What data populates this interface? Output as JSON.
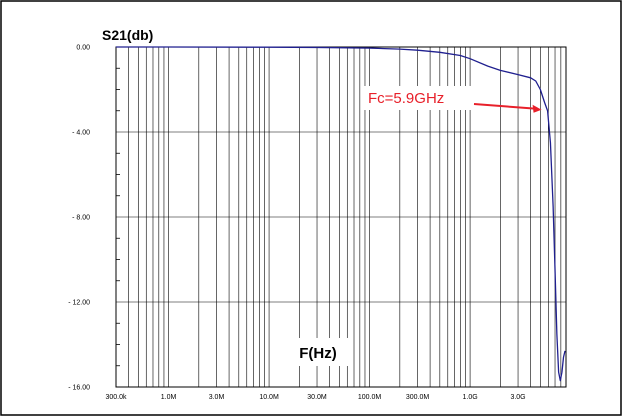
{
  "chart_data": {
    "type": "line",
    "title": "S21(db)",
    "xlabel": "F(Hz)",
    "ylabel": "",
    "x_scale": "log",
    "xlim": [
      300000,
      9000000000
    ],
    "ylim": [
      -16,
      0
    ],
    "grid": true,
    "x_ticks": [
      {
        "value": 300000,
        "label": "300.0k"
      },
      {
        "value": 1000000,
        "label": "1.0M"
      },
      {
        "value": 3000000,
        "label": "3.0M"
      },
      {
        "value": 10000000,
        "label": "10.0M"
      },
      {
        "value": 30000000,
        "label": "30.0M"
      },
      {
        "value": 100000000,
        "label": "100.0M"
      },
      {
        "value": 300000000,
        "label": "300.0M"
      },
      {
        "value": 1000000000,
        "label": "1.0G"
      },
      {
        "value": 3000000000,
        "label": "3.0G"
      }
    ],
    "y_ticks": [
      {
        "value": 0,
        "label": "0.00"
      },
      {
        "value": -4,
        "label": "- 4.00"
      },
      {
        "value": -8,
        "label": "- 8.00"
      },
      {
        "value": -12,
        "label": "- 12.00"
      },
      {
        "value": -16,
        "label": "- 16.00"
      }
    ],
    "series": [
      {
        "color": "#1f1f8f",
        "x": [
          300000,
          1000000,
          10000000,
          30000000,
          100000000,
          200000000,
          300000000,
          500000000,
          800000000,
          1000000000,
          1500000000,
          2000000000,
          3000000000,
          4000000000,
          4500000000,
          5000000000,
          5500000000,
          5900000000,
          6300000000,
          6700000000,
          7000000000,
          7300000000,
          7600000000,
          7900000000,
          8200000000,
          8500000000,
          8800000000
        ],
        "y": [
          0,
          0,
          -0.01,
          -0.02,
          -0.05,
          -0.1,
          -0.15,
          -0.25,
          -0.4,
          -0.55,
          -0.9,
          -1.1,
          -1.3,
          -1.45,
          -1.6,
          -2.0,
          -2.6,
          -3.0,
          -4.5,
          -7.5,
          -10.5,
          -13.5,
          -15.3,
          -15.7,
          -15.3,
          -14.6,
          -14.3
        ]
      }
    ],
    "annotation": {
      "text": "Fc=5.9GHz",
      "x": 5900000000,
      "y": -3.0
    },
    "legend": "none"
  }
}
